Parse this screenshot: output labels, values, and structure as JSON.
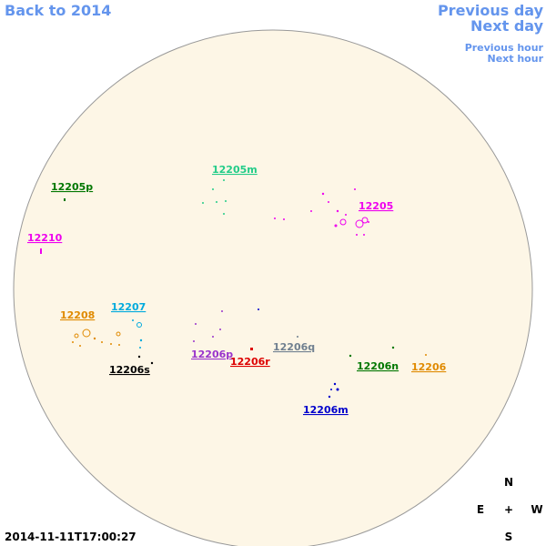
{
  "nav": {
    "back": "Back to 2014",
    "previous_day": "Previous day",
    "next_day": "Next day",
    "previous_hour": "Previous hour",
    "next_hour": "Next hour"
  },
  "regions": [
    {
      "label": "12205m",
      "color": "#22cc88"
    },
    {
      "label": "12205p",
      "color": "#007700"
    },
    {
      "label": "12205",
      "color": "#ee00ee"
    },
    {
      "label": "12210",
      "color": "#ee00ee"
    },
    {
      "label": "12207",
      "color": "#00aadd"
    },
    {
      "label": "12208",
      "color": "#e08a00"
    },
    {
      "label": "12206s",
      "color": "#000000"
    },
    {
      "label": "12206p",
      "color": "#9933cc"
    },
    {
      "label": "12206r",
      "color": "#dd0000"
    },
    {
      "label": "12206q",
      "color": "#708090"
    },
    {
      "label": "12206n",
      "color": "#007700"
    },
    {
      "label": "12206",
      "color": "#e08a00"
    },
    {
      "label": "12206m",
      "color": "#0000cc"
    }
  ],
  "compass": {
    "north": "N",
    "east": "E",
    "center": "+",
    "west": "W",
    "south": "S"
  },
  "timestamp": "2014-11-11T17:00:27"
}
